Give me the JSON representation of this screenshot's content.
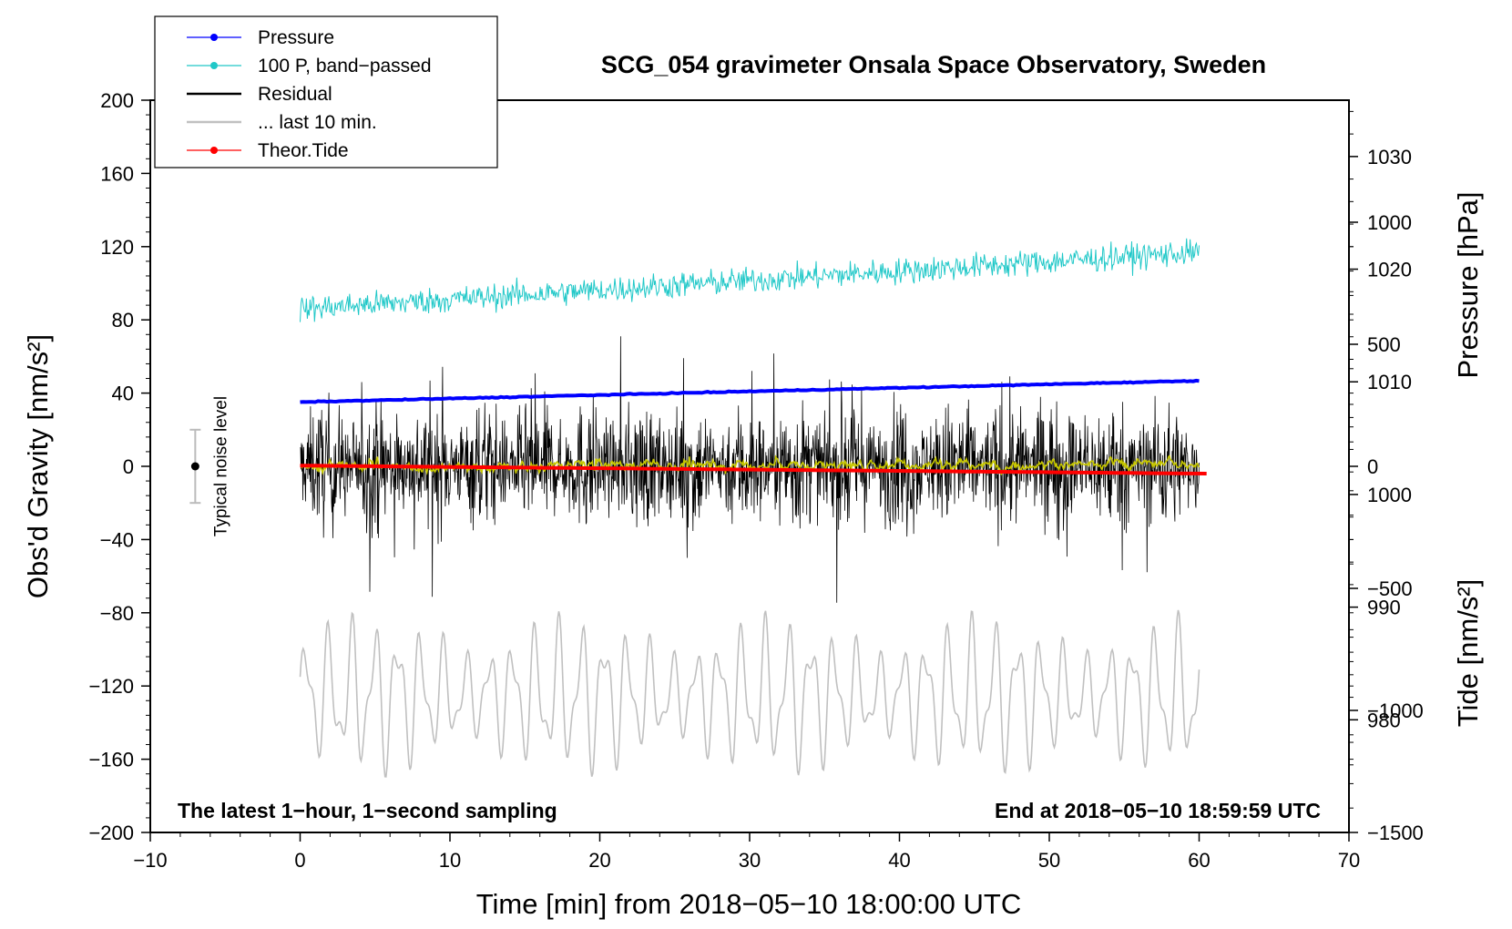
{
  "chart_data": {
    "type": "line",
    "title": "SCG_054 gravimeter Onsala Space Observatory, Sweden",
    "xlabel": "Time [min] from 2018−05−10 18:00:00 UTC",
    "ylabel_left": "Obs'd Gravity [nm/s²]",
    "ylabel_right_top": "Pressure [hPa]",
    "ylabel_right_bottom": "Tide [nm/s²]",
    "xlim": [
      -10,
      70
    ],
    "ylim": [
      -200,
      200
    ],
    "pressure_axis_range": [
      970,
      1035
    ],
    "tide_axis_range": [
      -1500,
      1500
    ],
    "x_ticks": [
      "−10",
      "0",
      "10",
      "20",
      "30",
      "40",
      "50",
      "60",
      "70"
    ],
    "x_tick_values": [
      -10,
      0,
      10,
      20,
      30,
      40,
      50,
      60,
      70
    ],
    "y_ticks": [
      "200",
      "160",
      "120",
      "80",
      "40",
      "0",
      "−40",
      "−80",
      "−120",
      "−160",
      "−200"
    ],
    "y_tick_values": [
      200,
      160,
      120,
      80,
      40,
      0,
      -40,
      -80,
      -120,
      -160,
      -200
    ],
    "pressure_ticks": [
      "1030",
      "1020",
      "1010",
      "1000",
      "990",
      "980"
    ],
    "pressure_tick_values": [
      1030,
      1020,
      1010,
      1000,
      990,
      980
    ],
    "tide_ticks": [
      "1000",
      "500",
      "0",
      "−500",
      "−1000",
      "−1500"
    ],
    "tide_tick_values": [
      1000,
      500,
      0,
      -500,
      -1000,
      -1500
    ],
    "legend": [
      {
        "label": "Pressure",
        "color": "#0000ff",
        "marker": true
      },
      {
        "label": "100 P, band−passed",
        "color": "#20c8c8",
        "marker": true
      },
      {
        "label": "Residual",
        "color": "#000000",
        "marker": false
      },
      {
        "label": "... last 10 min.",
        "color": "#c0c0c0",
        "marker": false
      },
      {
        "label": "Theor.Tide",
        "color": "#ff0000",
        "marker": true
      }
    ],
    "series": [
      {
        "name": "Pressure",
        "color": "#0000ff",
        "x": [
          0,
          60
        ],
        "values": [
          1008.2,
          1010.1
        ],
        "axis": "pressure"
      },
      {
        "name": "100 P, band−passed",
        "color": "#20c8c8",
        "x": [
          0,
          60
        ],
        "trend": [
          86,
          117
        ],
        "noise_amplitude": 7,
        "axis": "gravity"
      },
      {
        "name": "Residual",
        "color": "#000000",
        "x": [
          0,
          60
        ],
        "trend": [
          0,
          0
        ],
        "noise_amplitude": 35,
        "axis": "gravity"
      },
      {
        "name": "Residual smoothed",
        "color": "#c8c800",
        "x": [
          0,
          60
        ],
        "trend": [
          0,
          1
        ],
        "noise_amplitude": 2.5,
        "axis": "gravity"
      },
      {
        "name": "... last 10 min.",
        "color": "#c0c0c0",
        "x": [
          0,
          60
        ],
        "trend": [
          -125,
          -125
        ],
        "noise_amplitude": 30,
        "axis": "gravity"
      },
      {
        "name": "Theor.Tide",
        "color": "#ff0000",
        "x": [
          0,
          60.5
        ],
        "values": [
          3,
          -30
        ],
        "axis": "tide"
      }
    ],
    "noise_bar": {
      "label": "Typical noise level",
      "x": -7,
      "center": 0,
      "half_range": 20
    },
    "annotation_left": "The latest 1−hour, 1−second sampling",
    "annotation_right": "End at 2018−05−10 18:59:59 UTC"
  }
}
